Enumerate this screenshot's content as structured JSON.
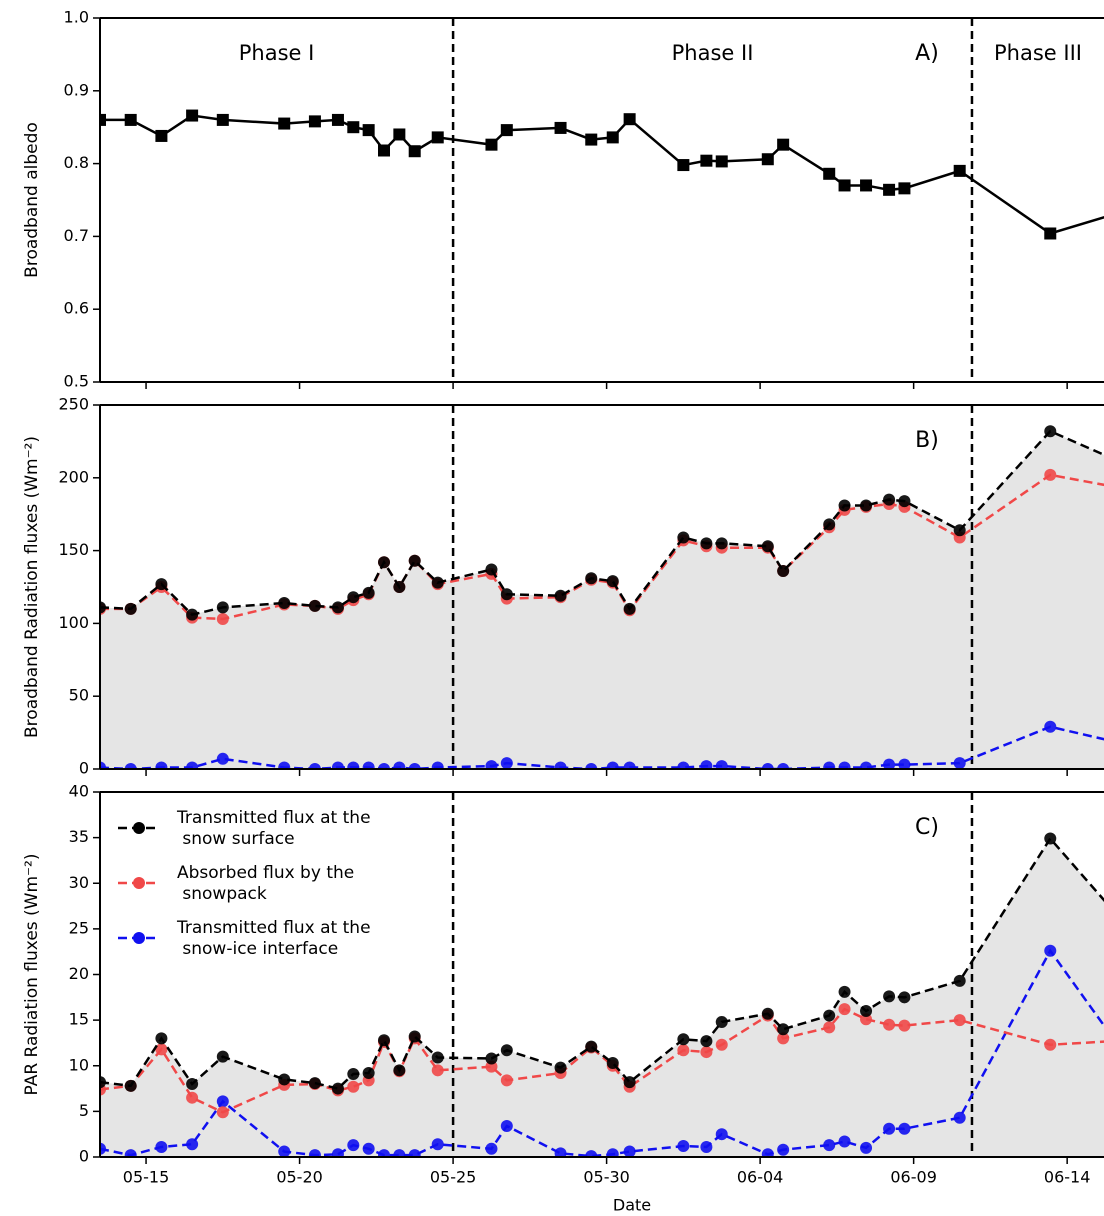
{
  "chart_data": [
    {
      "type": "line",
      "ylabel": "Broadband albedo",
      "panel_label": "A)",
      "x": [
        13.5,
        14.5,
        15.5,
        16.5,
        17.5,
        19.5,
        20.5,
        21.25,
        21.75,
        22.25,
        22.75,
        23.25,
        23.75,
        24.5,
        26.25,
        26.75,
        28.5,
        29.5,
        30.2,
        30.75,
        32.5,
        33.25,
        33.75,
        35.25,
        35.75,
        37.25,
        37.75,
        38.45,
        39.2,
        39.7,
        41.5,
        44.45,
        46.5
      ],
      "series": [
        {
          "name": "Broadband albedo",
          "color": "#000000",
          "marker": "square",
          "dashed": false,
          "values": [
            0.86,
            0.86,
            0.838,
            0.866,
            0.86,
            0.855,
            0.858,
            0.86,
            0.85,
            0.846,
            0.818,
            0.84,
            0.817,
            0.836,
            0.826,
            0.846,
            0.849,
            0.833,
            0.836,
            0.861,
            0.798,
            0.804,
            0.803,
            0.806,
            0.826,
            0.786,
            0.77,
            0.77,
            0.764,
            0.766,
            0.79,
            0.704,
            0.73
          ]
        }
      ],
      "xlim": [
        13.5,
        46.2
      ],
      "xticks": [
        {
          "value": 15,
          "label": "05-15"
        },
        {
          "value": 20,
          "label": "05-20"
        },
        {
          "value": 25,
          "label": "05-25"
        },
        {
          "value": 30,
          "label": "05-30"
        },
        {
          "value": 35,
          "label": "06-04"
        },
        {
          "value": 40,
          "label": "06-09"
        },
        {
          "value": 45,
          "label": "06-14"
        }
      ],
      "ylim": [
        0.5,
        1.0
      ],
      "yticks": [
        0.5,
        0.6,
        0.7,
        0.8,
        0.9,
        {
          "value": 1.0,
          "label": "1.0"
        }
      ],
      "vlines": [
        25,
        41.9
      ],
      "phases": [
        "Phase I",
        "Phase II",
        "Phase III"
      ]
    },
    {
      "type": "line",
      "ylabel": "Broadband Radiation fluxes (Wm⁻²)",
      "panel_label": "B)",
      "fill_under": true,
      "x": [
        13.5,
        14.5,
        15.5,
        16.5,
        17.5,
        19.5,
        20.5,
        21.25,
        21.75,
        22.25,
        22.75,
        23.25,
        23.75,
        24.5,
        26.25,
        26.75,
        28.5,
        29.5,
        30.2,
        30.75,
        32.5,
        33.25,
        33.75,
        35.25,
        35.75,
        37.25,
        37.75,
        38.45,
        39.2,
        39.7,
        41.5,
        44.45,
        46.5
      ],
      "series": [
        {
          "name": "Transmitted flux at the snow surface",
          "color": "#000000",
          "marker": "circle",
          "dashed": true,
          "values": [
            111,
            110,
            127,
            106,
            111,
            114,
            112,
            111,
            118,
            121,
            142,
            125,
            143,
            128,
            137,
            120,
            119,
            131,
            129,
            110,
            159,
            155,
            155,
            153,
            136,
            168,
            181,
            181,
            185,
            184,
            164,
            232,
            213
          ]
        },
        {
          "name": "Absorbed flux by the snowpack",
          "color": "#f04848",
          "marker": "circle",
          "dashed": true,
          "values": [
            110,
            110,
            125,
            104,
            103,
            113,
            112,
            110,
            116,
            120,
            142,
            125,
            143,
            127,
            134,
            117,
            118,
            130,
            128,
            109,
            157,
            153,
            152,
            152,
            136,
            166,
            178,
            180,
            182,
            180,
            159,
            202,
            194
          ]
        },
        {
          "name": "Transmitted flux at the snow-ice interface",
          "color": "#1010f0",
          "marker": "circle",
          "dashed": true,
          "values": [
            1,
            0,
            1,
            1,
            7,
            1,
            0,
            1,
            1,
            1,
            0,
            1,
            0,
            1,
            2,
            4,
            1,
            0,
            1,
            1,
            1,
            2,
            2,
            0,
            0,
            1,
            1,
            1,
            3,
            3,
            4,
            29,
            19
          ]
        }
      ],
      "xlim": [
        13.5,
        46.2
      ],
      "xticks": [
        {
          "value": 15,
          "label": "05-15"
        },
        {
          "value": 20,
          "label": "05-20"
        },
        {
          "value": 25,
          "label": "05-25"
        },
        {
          "value": 30,
          "label": "05-30"
        },
        {
          "value": 35,
          "label": "06-04"
        },
        {
          "value": 40,
          "label": "06-09"
        },
        {
          "value": 45,
          "label": "06-14"
        }
      ],
      "ylim": [
        0,
        250
      ],
      "yticks": [
        0,
        50,
        100,
        150,
        200,
        250
      ],
      "vlines": [
        25,
        41.9
      ]
    },
    {
      "type": "line",
      "ylabel": "PAR Radiation fluxes (Wm⁻²)",
      "panel_label": "C)",
      "xlabel": "Date",
      "fill_under": true,
      "legend": "upper left",
      "x": [
        13.5,
        14.5,
        15.5,
        16.5,
        17.5,
        19.5,
        20.5,
        21.25,
        21.75,
        22.25,
        22.75,
        23.25,
        23.75,
        24.5,
        26.25,
        26.75,
        28.5,
        29.5,
        30.2,
        30.75,
        32.5,
        33.25,
        33.75,
        35.25,
        35.75,
        37.25,
        37.75,
        38.45,
        39.2,
        39.7,
        41.5,
        44.45,
        46.5
      ],
      "series": [
        {
          "name": "Transmitted flux at the\n snow surface",
          "color": "#000000",
          "marker": "circle",
          "dashed": true,
          "values": [
            8.2,
            7.8,
            13.0,
            8.0,
            11.0,
            8.5,
            8.1,
            7.5,
            9.1,
            9.2,
            12.8,
            9.5,
            13.2,
            10.9,
            10.8,
            11.7,
            9.8,
            12.1,
            10.3,
            8.2,
            12.9,
            12.7,
            14.8,
            15.7,
            14.0,
            15.5,
            18.1,
            16.0,
            17.6,
            17.5,
            19.3,
            34.9,
            27.0
          ]
        },
        {
          "name": "Absorbed flux by the\n snowpack",
          "color": "#f04848",
          "marker": "circle",
          "dashed": true,
          "values": [
            7.4,
            7.8,
            11.8,
            6.5,
            4.9,
            7.9,
            8.0,
            7.3,
            7.7,
            8.4,
            12.6,
            9.4,
            13.0,
            9.5,
            9.9,
            8.4,
            9.2,
            12.0,
            10.0,
            7.7,
            11.7,
            11.5,
            12.3,
            15.5,
            13.0,
            14.2,
            16.2,
            15.1,
            14.5,
            14.4,
            15.0,
            12.3,
            12.7
          ]
        },
        {
          "name": "Transmitted flux at the\n snow-ice interface",
          "color": "#1010f0",
          "marker": "circle",
          "dashed": true,
          "values": [
            0.9,
            0.2,
            1.1,
            1.4,
            6.1,
            0.6,
            0.2,
            0.3,
            1.3,
            0.9,
            0.2,
            0.2,
            0.2,
            1.4,
            0.9,
            3.4,
            0.4,
            0.1,
            0.3,
            0.6,
            1.2,
            1.1,
            2.5,
            0.3,
            0.8,
            1.3,
            1.7,
            1.0,
            3.1,
            3.1,
            4.3,
            22.6,
            13.0
          ]
        }
      ],
      "xlim": [
        13.5,
        46.2
      ],
      "xticks": [
        {
          "value": 15,
          "label": "05-15"
        },
        {
          "value": 20,
          "label": "05-20"
        },
        {
          "value": 25,
          "label": "05-25"
        },
        {
          "value": 30,
          "label": "05-30"
        },
        {
          "value": 35,
          "label": "06-04"
        },
        {
          "value": 40,
          "label": "06-09"
        },
        {
          "value": 45,
          "label": "06-14"
        }
      ],
      "ylim": [
        0,
        40
      ],
      "yticks": [
        0,
        5,
        10,
        15,
        20,
        25,
        30,
        35,
        40
      ],
      "vlines": [
        25,
        41.9
      ]
    }
  ]
}
